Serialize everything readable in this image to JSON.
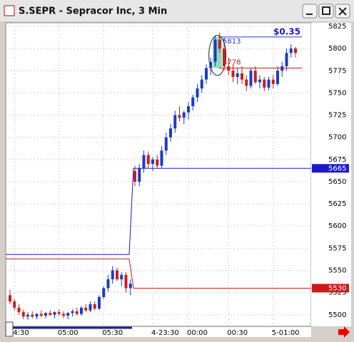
{
  "chart_data": {
    "type": "candlestick",
    "title": "S.SEPR - Sepracor Inc, 3 Min",
    "up_color": "#1a3cc8",
    "down_color": "#c81e1e",
    "open": [
      5522,
      5515,
      5508,
      5503,
      5498,
      5500,
      5498,
      5501,
      5499,
      5502,
      5500,
      5503,
      5501,
      5499,
      5502,
      5504,
      5501,
      5508,
      5505,
      5512,
      5507,
      5520,
      5530,
      5540,
      5550,
      5540,
      5545,
      5530,
      5662,
      5650,
      5665,
      5680,
      5670,
      5675,
      5668,
      5685,
      5700,
      5710,
      5725,
      5722,
      5728,
      5735,
      5745,
      5755,
      5765,
      5778,
      5785,
      5810,
      5800,
      5780,
      5775,
      5768,
      5772,
      5765,
      5758,
      5775,
      5762,
      5765,
      5756,
      5765,
      5760,
      5775,
      5780,
      5795,
      5800
    ],
    "high": [
      5528,
      5518,
      5512,
      5506,
      5503,
      5504,
      5502,
      5505,
      5503,
      5505,
      5504,
      5506,
      5504,
      5503,
      5506,
      5508,
      5510,
      5512,
      5515,
      5515,
      5522,
      5532,
      5545,
      5555,
      5553,
      5548,
      5548,
      5540,
      5668,
      5670,
      5685,
      5684,
      5678,
      5680,
      5690,
      5705,
      5715,
      5730,
      5735,
      5730,
      5740,
      5748,
      5760,
      5770,
      5782,
      5790,
      5815,
      5818,
      5812,
      5790,
      5782,
      5778,
      5780,
      5770,
      5778,
      5780,
      5770,
      5768,
      5768,
      5770,
      5780,
      5785,
      5800,
      5805,
      5802
    ],
    "low": [
      5512,
      5505,
      5500,
      5495,
      5494,
      5496,
      5495,
      5497,
      5496,
      5498,
      5496,
      5499,
      5496,
      5495,
      5498,
      5499,
      5499,
      5503,
      5503,
      5505,
      5505,
      5518,
      5526,
      5535,
      5538,
      5532,
      5525,
      5522,
      5645,
      5645,
      5660,
      5665,
      5662,
      5665,
      5665,
      5680,
      5695,
      5705,
      5718,
      5715,
      5720,
      5730,
      5740,
      5750,
      5760,
      5770,
      5780,
      5795,
      5775,
      5770,
      5762,
      5760,
      5760,
      5752,
      5755,
      5760,
      5755,
      5752,
      5753,
      5755,
      5758,
      5768,
      5775,
      5790,
      5790
    ],
    "close": [
      5515,
      5508,
      5503,
      5498,
      5500,
      5498,
      5501,
      5499,
      5502,
      5500,
      5503,
      5501,
      5499,
      5502,
      5504,
      5501,
      5508,
      5505,
      5512,
      5507,
      5520,
      5530,
      5540,
      5550,
      5540,
      5545,
      5530,
      5535,
      5650,
      5665,
      5680,
      5670,
      5675,
      5668,
      5685,
      5700,
      5710,
      5725,
      5722,
      5728,
      5735,
      5745,
      5755,
      5765,
      5778,
      5785,
      5810,
      5800,
      5780,
      5775,
      5768,
      5772,
      5765,
      5758,
      5775,
      5762,
      5765,
      5756,
      5765,
      5760,
      5775,
      5780,
      5795,
      5800,
      5795
    ],
    "xticks": [
      {
        "value": 1,
        "label": "4:30"
      },
      {
        "value": 11,
        "label": "05:00"
      },
      {
        "value": 21,
        "label": "05:30"
      },
      {
        "value": 32,
        "label": "4-23:30"
      },
      {
        "value": 40,
        "label": "00:00"
      },
      {
        "value": 49,
        "label": "00:30"
      },
      {
        "value": 59,
        "label": "5-01:00"
      }
    ],
    "ylim": [
      5487,
      5829
    ],
    "yticks": [
      5500,
      5525,
      5550,
      5575,
      5600,
      5625,
      5650,
      5675,
      5700,
      5725,
      5750,
      5775,
      5800,
      5825
    ],
    "grid": true,
    "level_lines": [
      {
        "color": "#1a1acc",
        "before": 5568,
        "after": 5665
      },
      {
        "color": "#cc1a1a",
        "before": 5563,
        "after": 5530
      }
    ],
    "annotation": {
      "high": 5813,
      "low": 5778,
      "change": "$0.35",
      "shade_color": "#8fdcb4"
    }
  }
}
